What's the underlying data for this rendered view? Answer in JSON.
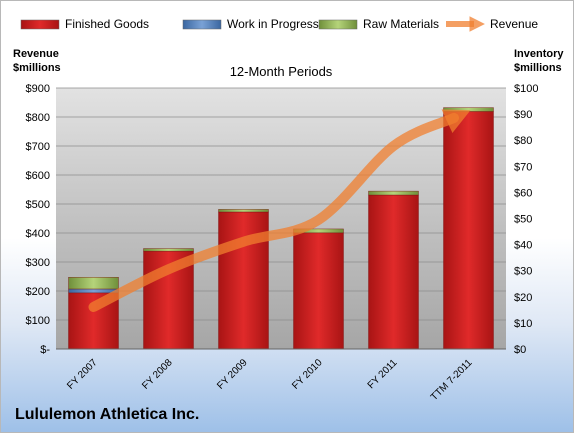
{
  "chart_data": {
    "type": "bar",
    "title": "12-Month Periods",
    "categories": [
      "FY 2007",
      "FY 2008",
      "FY 2009",
      "FY 2010",
      "FY 2011",
      "TTM 7-2011"
    ],
    "stacked_series_axis": "right",
    "series": [
      {
        "name": "Finished Goods",
        "values": [
          21.5,
          37.5,
          52.5,
          44.5,
          59,
          91
        ],
        "color": "#d42020"
      },
      {
        "name": "Work in Progress",
        "values": [
          1.5,
          0,
          0,
          0,
          0,
          0
        ],
        "color": "#4f81bd"
      },
      {
        "name": "Raw Materials",
        "values": [
          4.5,
          1,
          1,
          1.5,
          1.5,
          1.5
        ],
        "color": "#9bbb59"
      }
    ],
    "line_series": {
      "name": "Revenue",
      "axis": "left",
      "values": [
        145,
        275,
        370,
        445,
        700,
        820
      ],
      "color": "#f07f2f"
    },
    "left_axis": {
      "label_line1": "Revenue",
      "label_line2": "$millions",
      "min": 0,
      "max": 900,
      "step": 100,
      "ticks": [
        "$-",
        "$100",
        "$200",
        "$300",
        "$400",
        "$500",
        "$600",
        "$700",
        "$800",
        "$900"
      ]
    },
    "right_axis": {
      "label_line1": "Inventory",
      "label_line2": "$millions",
      "min": 0,
      "max": 100,
      "step": 10,
      "ticks": [
        "$0",
        "$10",
        "$20",
        "$30",
        "$40",
        "$50",
        "$60",
        "$70",
        "$80",
        "$90",
        "$100"
      ]
    },
    "legend_position": "top",
    "grid": true
  },
  "footer": {
    "company": "Lululemon Athletica Inc."
  }
}
